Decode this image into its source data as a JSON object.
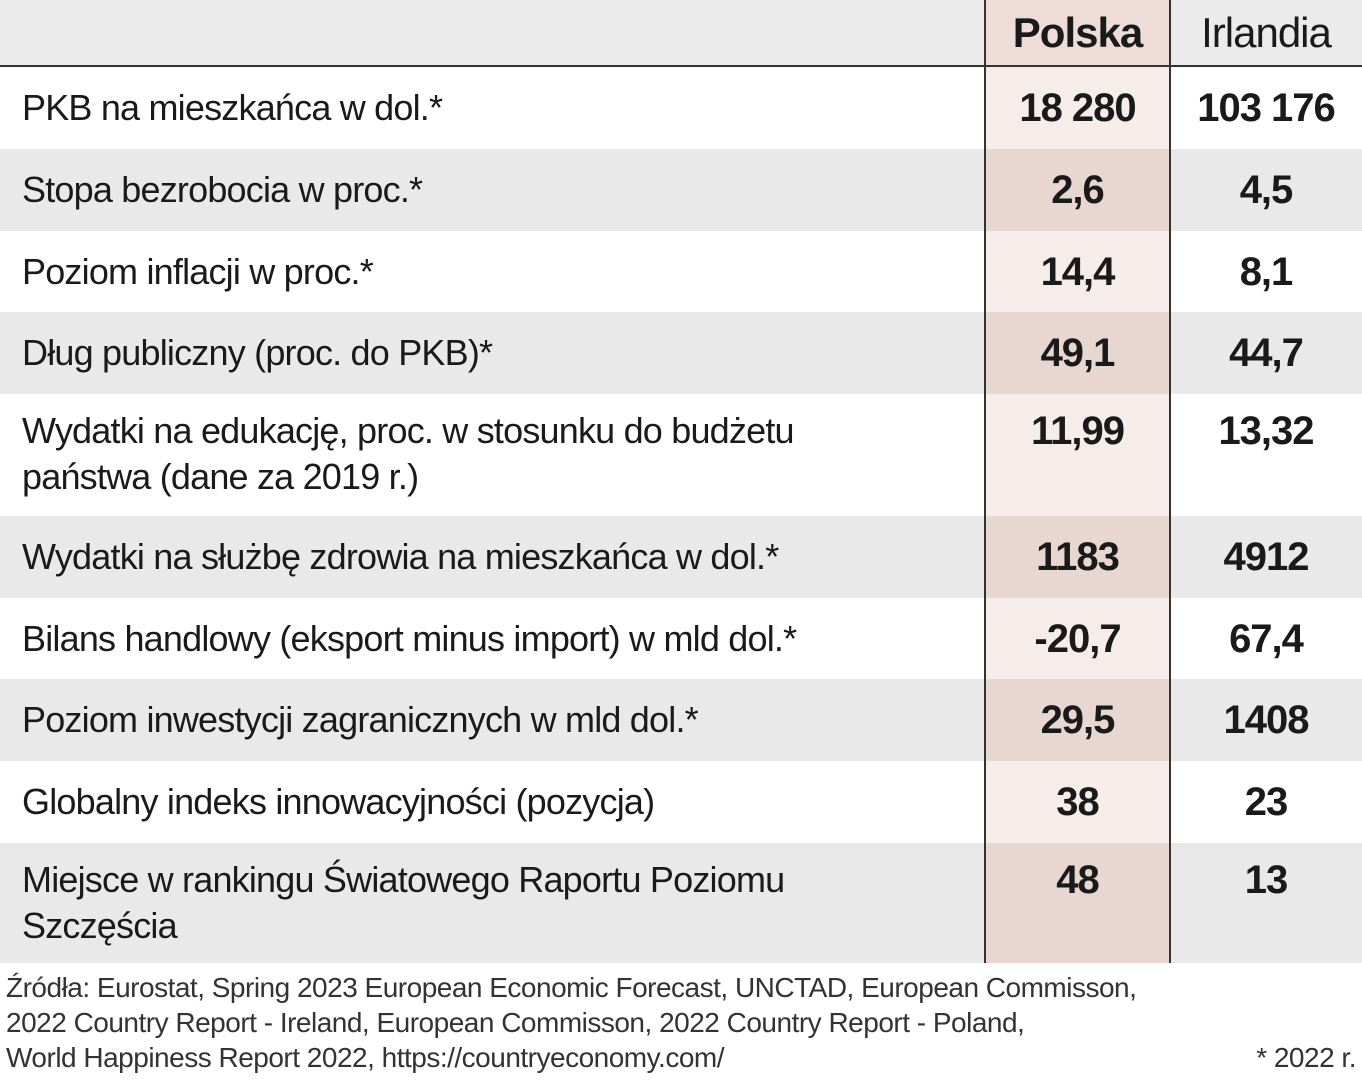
{
  "table": {
    "columns": [
      "Polska",
      "Irlandia"
    ],
    "rows": [
      {
        "label": "PKB na mieszkańca w dol.*",
        "values": [
          "18 280",
          "103 176"
        ]
      },
      {
        "label": "Stopa bezrobocia w proc.*",
        "values": [
          "2,6",
          "4,5"
        ]
      },
      {
        "label": "Poziom inflacji w proc.*",
        "values": [
          "14,4",
          "8,1"
        ]
      },
      {
        "label": "Dług publiczny (proc. do PKB)*",
        "values": [
          "49,1",
          "44,7"
        ]
      },
      {
        "label": "Wydatki na edukację, proc. w stosunku do budżetu państwa (dane za 2019 r.)",
        "values": [
          "11,99",
          "13,32"
        ]
      },
      {
        "label": "Wydatki na służbę zdrowia na mieszkańca w dol.*",
        "values": [
          "1183",
          "4912"
        ]
      },
      {
        "label": "Bilans handlowy (eksport minus import) w mld dol.*",
        "values": [
          "-20,7",
          "67,4"
        ]
      },
      {
        "label": "Poziom inwestycji zagranicznych w mld dol.*",
        "values": [
          "29,5",
          "1408"
        ]
      },
      {
        "label": "Globalny indeks innowacyjności (pozycja)",
        "values": [
          "38",
          "23"
        ]
      },
      {
        "label": "Miejsce w rankingu Światowego Raportu Poziomu Szczęścia",
        "values": [
          "48",
          "13"
        ]
      }
    ],
    "footer": {
      "sources": [
        "Źródła: Eurostat, Spring 2023 European Economic Forecast, UNCTAD, European Commisson,",
        "2022 Country Report - Ireland, European Commisson, 2022 Country Report - Poland,",
        "World Happiness Report 2022,  https://countryeconomy.com/"
      ],
      "note": "* 2022 r."
    }
  }
}
